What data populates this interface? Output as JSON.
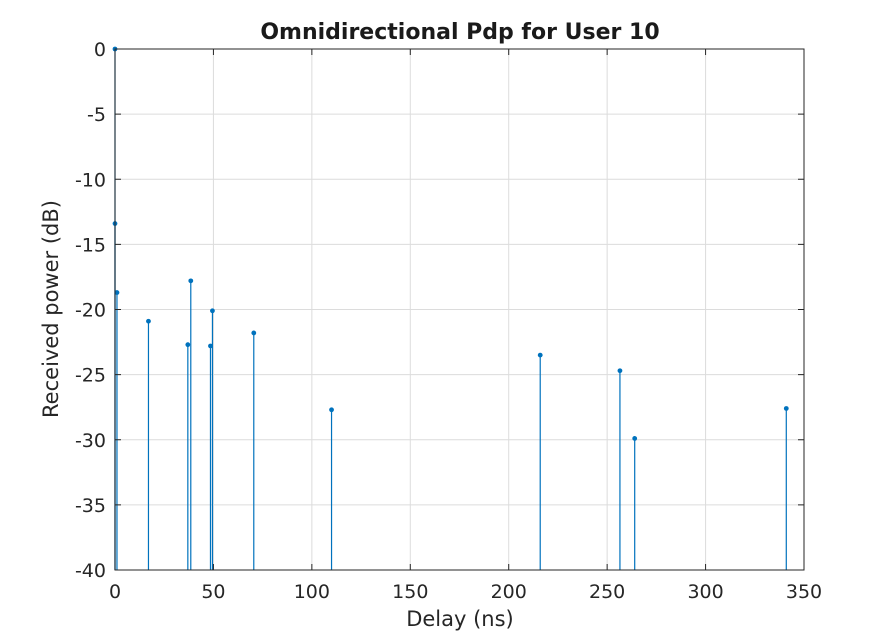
{
  "chart_data": {
    "type": "stem",
    "title": "Omnidirectional Pdp for User 10",
    "xlabel": "Delay (ns)",
    "ylabel": "Received power (dB)",
    "xlim": [
      0,
      350
    ],
    "ylim": [
      -40,
      0
    ],
    "xticks": [
      0,
      50,
      100,
      150,
      200,
      250,
      300,
      350
    ],
    "yticks": [
      0,
      -5,
      -10,
      -15,
      -20,
      -25,
      -30,
      -35,
      -40
    ],
    "grid": true,
    "color": "#0072BD",
    "baseline": -40,
    "x": [
      0,
      0,
      1,
      17,
      37,
      38.5,
      48.5,
      49.5,
      70.5,
      110,
      216,
      256.5,
      264,
      341
    ],
    "y": [
      0,
      -13.4,
      -18.7,
      -20.9,
      -22.7,
      -17.8,
      -22.8,
      -20.1,
      -21.8,
      -27.7,
      -23.5,
      -24.7,
      -29.9,
      -27.6
    ]
  }
}
